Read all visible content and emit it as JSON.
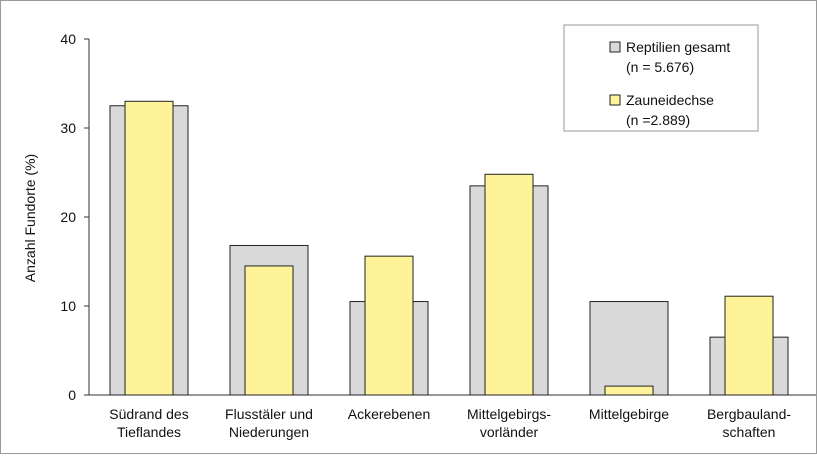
{
  "chart_data": {
    "type": "bar",
    "categories": [
      [
        "Südrand des",
        "Tieflandes"
      ],
      [
        "Flusstäler und",
        "Niederungen"
      ],
      [
        "Ackerebenen"
      ],
      [
        "Mittelgebirgs-",
        "vorländer"
      ],
      [
        "Mittelgebirge"
      ],
      [
        "Bergbauland-",
        "schaften"
      ]
    ],
    "series": [
      {
        "name": "Reptilien gesamt",
        "n_label": "(n = 5.676)",
        "color": "#d9d9d9",
        "values": [
          32.5,
          16.8,
          10.5,
          23.5,
          10.5,
          6.5
        ]
      },
      {
        "name": "Zauneidechse",
        "n_label": "(n =2.889)",
        "color": "#fff39a",
        "values": [
          33.0,
          14.5,
          15.6,
          24.8,
          1.0,
          11.1
        ]
      }
    ],
    "ylabel": "Anzahl Fundorte (%)",
    "ylim": [
      0,
      40
    ],
    "yticks": [
      0,
      10,
      20,
      30,
      40
    ],
    "grid": false,
    "legend_position": "top-right",
    "bar_stroke": "#222222"
  }
}
